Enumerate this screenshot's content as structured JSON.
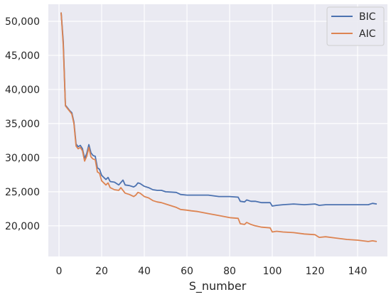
{
  "chart_data": {
    "type": "line",
    "title": "",
    "xlabel": "S_number",
    "ylabel": "",
    "xlim": [
      -5,
      154
    ],
    "ylim": [
      15500,
      52500
    ],
    "xticks": [
      0,
      20,
      40,
      60,
      80,
      100,
      120,
      140
    ],
    "yticks": [
      20000,
      25000,
      30000,
      35000,
      40000,
      45000,
      50000
    ],
    "xtick_labels": [
      "0",
      "20",
      "40",
      "60",
      "80",
      "100",
      "120",
      "140"
    ],
    "ytick_labels": [
      "20,000",
      "25,000",
      "30,000",
      "35,000",
      "40,000",
      "45,000",
      "50,000"
    ],
    "grid": true,
    "legend_position": "top-right",
    "series": [
      {
        "name": "BIC",
        "color": "#4c72b0",
        "points": [
          [
            1,
            51300
          ],
          [
            2,
            47000
          ],
          [
            3,
            37700
          ],
          [
            4,
            37300
          ],
          [
            5,
            36900
          ],
          [
            6,
            36600
          ],
          [
            7,
            35200
          ],
          [
            8,
            32000
          ],
          [
            9,
            31600
          ],
          [
            10,
            31800
          ],
          [
            11,
            31300
          ],
          [
            12,
            29900
          ],
          [
            13,
            30600
          ],
          [
            14,
            31900
          ],
          [
            15,
            30700
          ],
          [
            16,
            30300
          ],
          [
            17,
            30200
          ],
          [
            18,
            28500
          ],
          [
            19,
            28300
          ],
          [
            20,
            27400
          ],
          [
            22,
            26800
          ],
          [
            23,
            27100
          ],
          [
            24,
            26500
          ],
          [
            26,
            26400
          ],
          [
            28,
            26000
          ],
          [
            30,
            26700
          ],
          [
            31,
            26000
          ],
          [
            33,
            25900
          ],
          [
            35,
            25700
          ],
          [
            36,
            25900
          ],
          [
            37,
            26300
          ],
          [
            38,
            26200
          ],
          [
            40,
            25800
          ],
          [
            42,
            25600
          ],
          [
            44,
            25300
          ],
          [
            46,
            25200
          ],
          [
            48,
            25200
          ],
          [
            50,
            25000
          ],
          [
            55,
            24900
          ],
          [
            57,
            24600
          ],
          [
            60,
            24500
          ],
          [
            62,
            24500
          ],
          [
            65,
            24500
          ],
          [
            70,
            24500
          ],
          [
            75,
            24300
          ],
          [
            80,
            24300
          ],
          [
            84,
            24200
          ],
          [
            85,
            23600
          ],
          [
            87,
            23500
          ],
          [
            88,
            23800
          ],
          [
            90,
            23600
          ],
          [
            92,
            23600
          ],
          [
            95,
            23400
          ],
          [
            99,
            23400
          ],
          [
            100,
            22900
          ],
          [
            102,
            23000
          ],
          [
            105,
            23100
          ],
          [
            110,
            23200
          ],
          [
            115,
            23100
          ],
          [
            120,
            23200
          ],
          [
            122,
            23000
          ],
          [
            125,
            23100
          ],
          [
            130,
            23100
          ],
          [
            135,
            23100
          ],
          [
            140,
            23100
          ],
          [
            145,
            23100
          ],
          [
            147,
            23300
          ],
          [
            149,
            23200
          ]
        ]
      },
      {
        "name": "AIC",
        "color": "#dd8452",
        "points": [
          [
            1,
            51300
          ],
          [
            2,
            46500
          ],
          [
            3,
            37600
          ],
          [
            4,
            37200
          ],
          [
            5,
            36800
          ],
          [
            6,
            36400
          ],
          [
            7,
            35000
          ],
          [
            8,
            31700
          ],
          [
            9,
            31300
          ],
          [
            10,
            31500
          ],
          [
            11,
            31000
          ],
          [
            12,
            29500
          ],
          [
            13,
            30200
          ],
          [
            14,
            31500
          ],
          [
            15,
            30100
          ],
          [
            16,
            29800
          ],
          [
            17,
            29700
          ],
          [
            18,
            27900
          ],
          [
            19,
            27700
          ],
          [
            20,
            26600
          ],
          [
            22,
            26000
          ],
          [
            23,
            26300
          ],
          [
            24,
            25600
          ],
          [
            26,
            25300
          ],
          [
            28,
            25200
          ],
          [
            29,
            25600
          ],
          [
            31,
            24800
          ],
          [
            33,
            24600
          ],
          [
            35,
            24300
          ],
          [
            36,
            24500
          ],
          [
            37,
            24900
          ],
          [
            38,
            24800
          ],
          [
            40,
            24300
          ],
          [
            42,
            24100
          ],
          [
            44,
            23700
          ],
          [
            46,
            23500
          ],
          [
            48,
            23400
          ],
          [
            50,
            23200
          ],
          [
            55,
            22700
          ],
          [
            57,
            22400
          ],
          [
            60,
            22300
          ],
          [
            62,
            22200
          ],
          [
            65,
            22100
          ],
          [
            70,
            21800
          ],
          [
            75,
            21500
          ],
          [
            80,
            21200
          ],
          [
            84,
            21100
          ],
          [
            85,
            20300
          ],
          [
            87,
            20200
          ],
          [
            88,
            20500
          ],
          [
            90,
            20200
          ],
          [
            92,
            20000
          ],
          [
            95,
            19800
          ],
          [
            99,
            19700
          ],
          [
            100,
            19100
          ],
          [
            102,
            19200
          ],
          [
            105,
            19100
          ],
          [
            110,
            19000
          ],
          [
            115,
            18800
          ],
          [
            120,
            18700
          ],
          [
            122,
            18300
          ],
          [
            125,
            18400
          ],
          [
            130,
            18200
          ],
          [
            135,
            18000
          ],
          [
            140,
            17900
          ],
          [
            145,
            17700
          ],
          [
            147,
            17800
          ],
          [
            149,
            17700
          ]
        ]
      }
    ]
  }
}
